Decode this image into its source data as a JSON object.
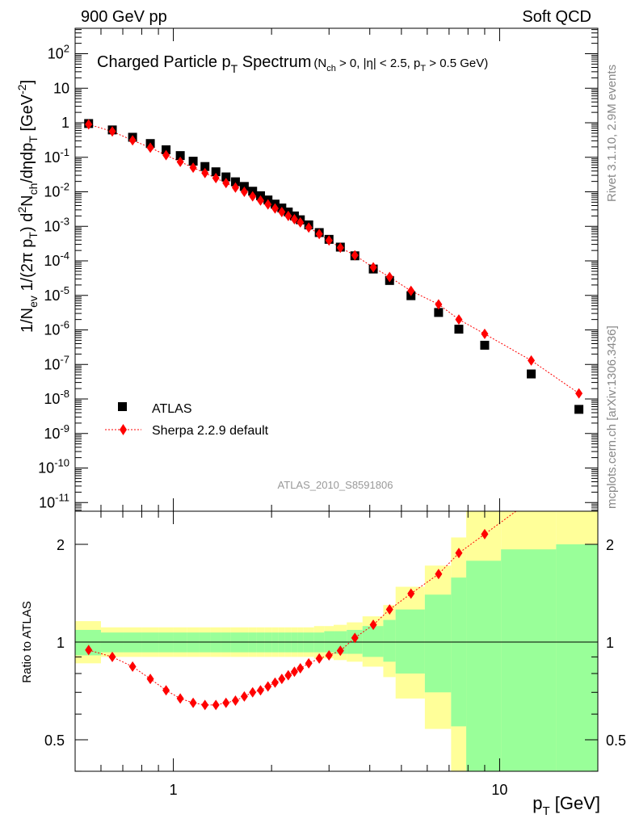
{
  "header": {
    "left": "900 GeV pp",
    "right": "Soft QCD"
  },
  "side": {
    "rivet": "Rivet 3.1.10,  2.9M events",
    "mcplots": "mcplots.cern.ch [arXiv:1306.3436]"
  },
  "analysis_id": "ATLAS_2010_S8591806",
  "colors": {
    "atlas": "#000000",
    "sherpa": "#ff0000",
    "band_yellow": "#ffff99",
    "band_green": "#99ff99"
  },
  "chart_data": [
    {
      "type": "scatter",
      "title": "Charged Particle p_T Spectrum",
      "title_cuts": "(N_ch > 0, |η| < 2.5, p_T > 0.5 GeV)",
      "xlabel": "p_T [GeV]",
      "ylabel": "1/N_ev 1/(2π p_T) d²N_ch/dηdp_T [GeV⁻²]",
      "xscale": "log",
      "yscale": "log",
      "xlim": [
        0.5,
        20
      ],
      "ylim": [
        3e-12,
        500
      ],
      "x_ticklabels": [
        "1",
        "10"
      ],
      "y_ticklabels": [
        "10^-11",
        "10^-10",
        "10^-9",
        "10^-8",
        "10^-7",
        "10^-6",
        "10^-5",
        "10^-4",
        "10^-3",
        "10^-2",
        "10^-1",
        "1",
        "10",
        "10^2"
      ],
      "legend_position": "lower-left",
      "series": [
        {
          "name": "ATLAS",
          "marker": "square",
          "x": [
            0.55,
            0.65,
            0.75,
            0.85,
            0.95,
            1.05,
            1.15,
            1.25,
            1.35,
            1.45,
            1.55,
            1.65,
            1.75,
            1.85,
            1.95,
            2.05,
            2.15,
            2.25,
            2.35,
            2.45,
            2.6,
            2.8,
            3.0,
            3.25,
            3.6,
            4.1,
            4.6,
            5.35,
            6.5,
            7.5,
            9.0,
            12.5,
            17.5
          ],
          "y": [
            0.95,
            0.62,
            0.38,
            0.25,
            0.165,
            0.112,
            0.077,
            0.054,
            0.038,
            0.027,
            0.0195,
            0.0143,
            0.0104,
            0.0077,
            0.0058,
            0.0044,
            0.0034,
            0.0026,
            0.002,
            0.00155,
            0.0011,
            0.00066,
            0.00042,
            0.00025,
            0.00014,
            5.8e-05,
            2.7e-05,
            9.8e-06,
            3.2e-06,
            1.05e-06,
            3.6e-07,
            5.3e-08,
            5e-09
          ]
        },
        {
          "name": "Sherpa 2.2.9 default",
          "marker": "diamond",
          "line": "dotted",
          "x": [
            0.55,
            0.65,
            0.75,
            0.85,
            0.95,
            1.05,
            1.15,
            1.25,
            1.35,
            1.45,
            1.55,
            1.65,
            1.75,
            1.85,
            1.95,
            2.05,
            2.15,
            2.25,
            2.35,
            2.45,
            2.6,
            2.8,
            3.0,
            3.25,
            3.6,
            4.1,
            4.6,
            5.35,
            6.5,
            7.5,
            9.0,
            12.5,
            17.5
          ],
          "y": [
            0.9,
            0.56,
            0.31,
            0.19,
            0.115,
            0.074,
            0.05,
            0.035,
            0.025,
            0.018,
            0.0133,
            0.01,
            0.0074,
            0.0056,
            0.0043,
            0.0033,
            0.0026,
            0.002,
            0.0016,
            0.0013,
            0.00092,
            0.0006,
            0.00039,
            0.00024,
            0.000145,
            6.5e-05,
            3.4e-05,
            1.35e-05,
            5.5e-06,
            2e-06,
            7.7e-07,
            1.3e-07,
            1.45e-08
          ]
        }
      ]
    },
    {
      "type": "scatter",
      "ylabel": "Ratio to ATLAS",
      "xlabel": "p_T [GeV]",
      "xscale": "log",
      "yscale": "log",
      "xlim": [
        0.5,
        20
      ],
      "ylim": [
        0.35,
        2.5
      ],
      "y_ticklabels": [
        "0.5",
        "1",
        "2"
      ],
      "bin_edges": [
        0.5,
        0.6,
        0.7,
        0.8,
        0.9,
        1.0,
        1.1,
        1.2,
        1.3,
        1.4,
        1.5,
        1.6,
        1.7,
        1.8,
        1.9,
        2.0,
        2.1,
        2.2,
        2.3,
        2.4,
        2.5,
        2.7,
        2.9,
        3.1,
        3.4,
        3.8,
        4.4,
        4.8,
        5.9,
        7.1,
        7.9,
        10.1,
        14.9,
        20.0
      ],
      "bands": [
        {
          "name": "green",
          "lo": [
            0.91,
            0.93,
            0.93,
            0.93,
            0.93,
            0.93,
            0.93,
            0.93,
            0.93,
            0.93,
            0.93,
            0.93,
            0.93,
            0.93,
            0.93,
            0.93,
            0.93,
            0.93,
            0.93,
            0.93,
            0.93,
            0.93,
            0.93,
            0.92,
            0.92,
            0.9,
            0.87,
            0.8,
            0.7,
            0.55,
            0.3,
            0.3,
            0.3
          ],
          "hi": [
            1.09,
            1.07,
            1.07,
            1.07,
            1.07,
            1.07,
            1.07,
            1.07,
            1.07,
            1.07,
            1.07,
            1.07,
            1.07,
            1.07,
            1.07,
            1.07,
            1.07,
            1.07,
            1.07,
            1.07,
            1.07,
            1.07,
            1.08,
            1.08,
            1.09,
            1.12,
            1.17,
            1.26,
            1.4,
            1.58,
            1.78,
            1.93,
            2.0
          ]
        },
        {
          "name": "yellow",
          "lo": [
            0.86,
            0.9,
            0.9,
            0.9,
            0.9,
            0.9,
            0.9,
            0.9,
            0.9,
            0.9,
            0.9,
            0.9,
            0.9,
            0.9,
            0.9,
            0.9,
            0.9,
            0.9,
            0.9,
            0.9,
            0.9,
            0.89,
            0.89,
            0.88,
            0.87,
            0.84,
            0.78,
            0.67,
            0.54,
            0.39,
            0.3,
            0.3,
            0.3
          ],
          "hi": [
            1.16,
            1.11,
            1.11,
            1.11,
            1.11,
            1.11,
            1.11,
            1.11,
            1.11,
            1.11,
            1.11,
            1.11,
            1.11,
            1.11,
            1.11,
            1.11,
            1.11,
            1.11,
            1.11,
            1.11,
            1.11,
            1.12,
            1.12,
            1.13,
            1.15,
            1.2,
            1.3,
            1.48,
            1.72,
            2.1,
            2.6,
            2.6,
            2.6
          ]
        }
      ],
      "series": [
        {
          "name": "Sherpa 2.2.9 default",
          "marker": "diamond",
          "line": "dotted",
          "x": [
            0.55,
            0.65,
            0.75,
            0.85,
            0.95,
            1.05,
            1.15,
            1.25,
            1.35,
            1.45,
            1.55,
            1.65,
            1.75,
            1.85,
            1.95,
            2.05,
            2.15,
            2.25,
            2.35,
            2.45,
            2.6,
            2.8,
            3.0,
            3.25,
            3.6,
            4.1,
            4.6,
            5.35,
            6.5,
            7.5,
            9.0
          ],
          "y": [
            0.945,
            0.9,
            0.84,
            0.77,
            0.71,
            0.67,
            0.65,
            0.64,
            0.64,
            0.65,
            0.66,
            0.68,
            0.7,
            0.71,
            0.73,
            0.75,
            0.77,
            0.79,
            0.81,
            0.83,
            0.86,
            0.89,
            0.91,
            0.94,
            1.03,
            1.13,
            1.26,
            1.41,
            1.62,
            1.88,
            2.15
          ]
        }
      ]
    }
  ]
}
